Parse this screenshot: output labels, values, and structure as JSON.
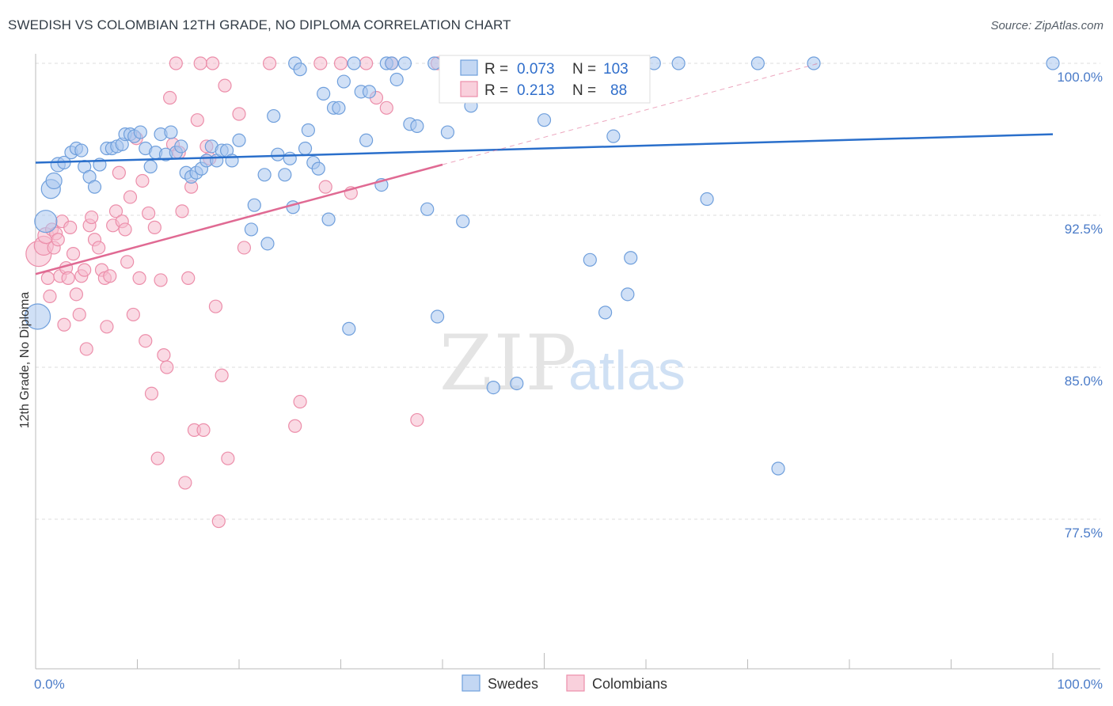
{
  "title": "SWEDISH VS COLOMBIAN 12TH GRADE, NO DIPLOMA CORRELATION CHART",
  "source": "Source: ZipAtlas.com",
  "watermark": {
    "zip": "ZIP",
    "atlas": "atlas"
  },
  "colors": {
    "swedes_fill": "#a9c6ee",
    "swedes_stroke": "#6f9fdc",
    "swedes_line": "#2a6fcb",
    "colombians_fill": "#f6bccd",
    "colombians_stroke": "#ec8eaa",
    "colombians_line": "#e06a93",
    "tick_text": "#4a7bc8",
    "grid": "#dcdcdc"
  },
  "legend": {
    "r_label": "R =",
    "n_label": "N =",
    "swedes": {
      "r": "0.073",
      "n": "103"
    },
    "colombians": {
      "r": "0.213",
      "n": "88"
    }
  },
  "bottom_legend": {
    "swedes": "Swedes",
    "colombians": "Colombians"
  },
  "chart_data": {
    "type": "scatter",
    "title": "SWEDISH VS COLOMBIAN 12TH GRADE, NO DIPLOMA CORRELATION CHART",
    "xlabel": "",
    "ylabel": "12th Grade, No Diploma",
    "xlim": [
      0,
      100
    ],
    "ylim": [
      70,
      100.8
    ],
    "x_tick_labels": [
      "0.0%",
      "100.0%"
    ],
    "y_ticks": [
      77.5,
      85.0,
      92.5,
      100.0
    ],
    "y_tick_labels": [
      "77.5%",
      "85.0%",
      "92.5%",
      "100.0%"
    ],
    "grid": true,
    "legend_position": "top-center",
    "series": [
      {
        "name": "Swedes",
        "r": 0.073,
        "n": 103,
        "trend": {
          "x": [
            0,
            100
          ],
          "y": [
            95.1,
            96.5
          ]
        },
        "points": [
          [
            0.2,
            87.5,
            16
          ],
          [
            1.0,
            92.2,
            14
          ],
          [
            1.5,
            93.8,
            12
          ],
          [
            1.8,
            94.2,
            10
          ],
          [
            2.2,
            95.0,
            9
          ],
          [
            2.8,
            95.1,
            8
          ],
          [
            3.5,
            95.6,
            8
          ],
          [
            4.0,
            95.8,
            8
          ],
          [
            4.5,
            95.7,
            8
          ],
          [
            4.8,
            94.9,
            8
          ],
          [
            5.3,
            94.4,
            8
          ],
          [
            5.8,
            93.9,
            8
          ],
          [
            6.3,
            95.0,
            8
          ],
          [
            7.0,
            95.8,
            8
          ],
          [
            7.5,
            95.8,
            8
          ],
          [
            8.0,
            95.9,
            8
          ],
          [
            8.5,
            96.0,
            8
          ],
          [
            8.8,
            96.5,
            8
          ],
          [
            9.3,
            96.5,
            8
          ],
          [
            9.7,
            96.4,
            8
          ],
          [
            10.3,
            96.6,
            8
          ],
          [
            10.8,
            95.8,
            8
          ],
          [
            11.3,
            94.9,
            8
          ],
          [
            11.8,
            95.6,
            8
          ],
          [
            12.3,
            96.5,
            8
          ],
          [
            12.8,
            95.5,
            8
          ],
          [
            13.3,
            96.6,
            8
          ],
          [
            13.8,
            95.6,
            8
          ],
          [
            14.3,
            95.9,
            8
          ],
          [
            14.8,
            94.6,
            8
          ],
          [
            15.3,
            94.4,
            8
          ],
          [
            15.8,
            94.6,
            8
          ],
          [
            16.3,
            94.8,
            8
          ],
          [
            16.8,
            95.2,
            8
          ],
          [
            17.3,
            95.9,
            8
          ],
          [
            17.8,
            95.2,
            8
          ],
          [
            18.3,
            95.7,
            8
          ],
          [
            18.8,
            95.7,
            8
          ],
          [
            19.3,
            95.2,
            8
          ],
          [
            20.0,
            96.2,
            8
          ],
          [
            21.5,
            93.0,
            8
          ],
          [
            21.2,
            91.8,
            8
          ],
          [
            22.5,
            94.5,
            8
          ],
          [
            22.8,
            91.1,
            8
          ],
          [
            23.4,
            97.4,
            8
          ],
          [
            23.8,
            95.5,
            8
          ],
          [
            24.5,
            94.5,
            8
          ],
          [
            25.0,
            95.3,
            8
          ],
          [
            25.3,
            92.9,
            8
          ],
          [
            25.5,
            100.0,
            8
          ],
          [
            26.0,
            99.7,
            8
          ],
          [
            26.5,
            95.8,
            8
          ],
          [
            26.8,
            96.7,
            8
          ],
          [
            27.3,
            95.1,
            8
          ],
          [
            27.8,
            94.8,
            8
          ],
          [
            28.3,
            98.5,
            8
          ],
          [
            28.8,
            92.3,
            8
          ],
          [
            29.3,
            97.8,
            8
          ],
          [
            29.8,
            97.8,
            8
          ],
          [
            30.3,
            99.1,
            8
          ],
          [
            30.8,
            86.9,
            8
          ],
          [
            31.3,
            100.0,
            8
          ],
          [
            32.0,
            98.6,
            8
          ],
          [
            32.5,
            96.2,
            8
          ],
          [
            32.8,
            98.6,
            8
          ],
          [
            34.0,
            94.0,
            8
          ],
          [
            34.5,
            100.0,
            8
          ],
          [
            35.0,
            100.0,
            8
          ],
          [
            35.5,
            99.2,
            8
          ],
          [
            36.3,
            100.0,
            8
          ],
          [
            36.8,
            97.0,
            8
          ],
          [
            37.5,
            96.9,
            8
          ],
          [
            38.5,
            92.8,
            8
          ],
          [
            39.2,
            100.0,
            8
          ],
          [
            39.5,
            87.5,
            8
          ],
          [
            40.5,
            96.6,
            8
          ],
          [
            41.5,
            100.0,
            8
          ],
          [
            42.0,
            92.2,
            8
          ],
          [
            42.5,
            100.0,
            8
          ],
          [
            42.8,
            97.9,
            8
          ],
          [
            45.0,
            84.0,
            8
          ],
          [
            45.8,
            100.0,
            8
          ],
          [
            47.3,
            84.2,
            8
          ],
          [
            48.0,
            100.0,
            8
          ],
          [
            49.5,
            100.0,
            8
          ],
          [
            50.0,
            97.2,
            8
          ],
          [
            54.3,
            100.0,
            8
          ],
          [
            54.5,
            90.3,
            8
          ],
          [
            56.0,
            87.7,
            8
          ],
          [
            56.5,
            100.0,
            8
          ],
          [
            56.8,
            96.4,
            8
          ],
          [
            58.2,
            88.6,
            8
          ],
          [
            58.5,
            90.4,
            8
          ],
          [
            60.8,
            100.0,
            8
          ],
          [
            63.2,
            100.0,
            8
          ],
          [
            66.0,
            93.3,
            8
          ],
          [
            71.0,
            100.0,
            8
          ],
          [
            73.0,
            80.0,
            8
          ],
          [
            76.5,
            100.0,
            8
          ],
          [
            100.0,
            100.0,
            8
          ]
        ]
      },
      {
        "name": "Colombians",
        "r": 0.213,
        "n": 88,
        "trend": {
          "x": [
            0,
            40
          ],
          "y": [
            89.6,
            95.0
          ]
        },
        "trend_extension": {
          "x": [
            40,
            77
          ],
          "y": [
            95.0,
            100.0
          ]
        },
        "points": [
          [
            0.3,
            90.6,
            16
          ],
          [
            0.8,
            91.0,
            12
          ],
          [
            1.0,
            91.5,
            10
          ],
          [
            1.2,
            89.4,
            8
          ],
          [
            1.4,
            88.5,
            8
          ],
          [
            1.6,
            91.8,
            8
          ],
          [
            1.8,
            90.9,
            8
          ],
          [
            2.0,
            91.6,
            8
          ],
          [
            2.2,
            91.3,
            8
          ],
          [
            2.4,
            89.5,
            8
          ],
          [
            2.6,
            92.2,
            8
          ],
          [
            2.8,
            87.1,
            8
          ],
          [
            3.0,
            89.9,
            8
          ],
          [
            3.2,
            89.4,
            8
          ],
          [
            3.4,
            91.9,
            8
          ],
          [
            3.7,
            90.6,
            8
          ],
          [
            4.0,
            88.6,
            8
          ],
          [
            4.3,
            87.6,
            8
          ],
          [
            4.5,
            89.5,
            8
          ],
          [
            4.8,
            89.8,
            8
          ],
          [
            5.0,
            85.9,
            8
          ],
          [
            5.3,
            92.0,
            8
          ],
          [
            5.5,
            92.4,
            8
          ],
          [
            5.8,
            91.3,
            8
          ],
          [
            6.2,
            90.9,
            8
          ],
          [
            6.5,
            89.8,
            8
          ],
          [
            6.8,
            89.4,
            8
          ],
          [
            7.0,
            87.0,
            8
          ],
          [
            7.3,
            89.5,
            8
          ],
          [
            7.6,
            92.0,
            8
          ],
          [
            7.9,
            92.7,
            8
          ],
          [
            8.2,
            94.6,
            8
          ],
          [
            8.5,
            92.2,
            8
          ],
          [
            8.8,
            91.8,
            8
          ],
          [
            9.0,
            90.2,
            8
          ],
          [
            9.3,
            93.4,
            8
          ],
          [
            9.6,
            87.6,
            8
          ],
          [
            9.9,
            96.3,
            8
          ],
          [
            10.2,
            89.4,
            8
          ],
          [
            10.5,
            94.2,
            8
          ],
          [
            10.8,
            86.3,
            8
          ],
          [
            11.1,
            92.6,
            8
          ],
          [
            11.4,
            83.7,
            8
          ],
          [
            11.7,
            91.9,
            8
          ],
          [
            12.0,
            80.5,
            8
          ],
          [
            12.3,
            89.3,
            8
          ],
          [
            12.6,
            85.6,
            8
          ],
          [
            12.9,
            85.0,
            8
          ],
          [
            13.2,
            98.3,
            8
          ],
          [
            13.5,
            96.0,
            8
          ],
          [
            13.8,
            100.0,
            8
          ],
          [
            14.1,
            95.6,
            8
          ],
          [
            14.4,
            92.7,
            8
          ],
          [
            14.7,
            79.3,
            8
          ],
          [
            15.0,
            89.4,
            8
          ],
          [
            15.3,
            93.9,
            8
          ],
          [
            15.6,
            81.9,
            8
          ],
          [
            15.9,
            97.2,
            8
          ],
          [
            16.2,
            100.0,
            8
          ],
          [
            16.5,
            81.9,
            8
          ],
          [
            16.8,
            95.9,
            8
          ],
          [
            17.1,
            95.3,
            8
          ],
          [
            17.4,
            100.0,
            8
          ],
          [
            17.7,
            88.0,
            8
          ],
          [
            18.0,
            77.4,
            8
          ],
          [
            18.3,
            84.6,
            8
          ],
          [
            18.6,
            98.9,
            8
          ],
          [
            18.9,
            80.5,
            8
          ],
          [
            20.0,
            97.5,
            8
          ],
          [
            20.5,
            90.9,
            8
          ],
          [
            23.0,
            100.0,
            8
          ],
          [
            25.5,
            82.1,
            8
          ],
          [
            26.0,
            83.3,
            8
          ],
          [
            28.0,
            100.0,
            8
          ],
          [
            28.5,
            93.9,
            8
          ],
          [
            30.0,
            100.0,
            8
          ],
          [
            31.0,
            93.6,
            8
          ],
          [
            32.5,
            100.0,
            8
          ],
          [
            33.5,
            98.3,
            8
          ],
          [
            34.5,
            97.8,
            8
          ],
          [
            35.0,
            100.0,
            8
          ],
          [
            37.5,
            82.4,
            8
          ],
          [
            39.5,
            100.0,
            8
          ],
          [
            41.5,
            100.0,
            8
          ],
          [
            43.5,
            100.0,
            8
          ],
          [
            44.5,
            98.4,
            8
          ],
          [
            45.5,
            100.0,
            8
          ],
          [
            46.5,
            100.0,
            8
          ]
        ]
      }
    ]
  }
}
